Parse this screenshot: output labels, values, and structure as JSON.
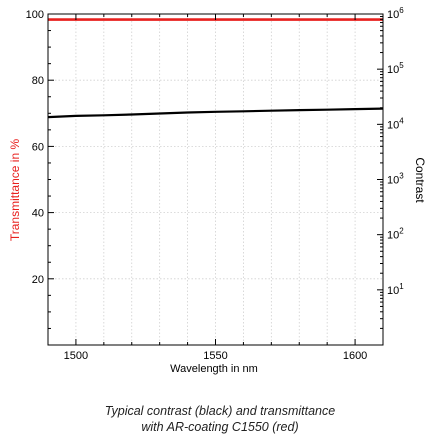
{
  "chart_data": {
    "type": "line",
    "xlabel": "Wavelength in nm",
    "ylabel": "Transmittance in %",
    "y2label": "Contrast",
    "xlim": [
      1490,
      1610
    ],
    "ylim": [
      0,
      100
    ],
    "y2lim": [
      0,
      1000000
    ],
    "y2scale": "log",
    "grid": true,
    "xticks": [
      1500,
      1550,
      1600
    ],
    "yticks": [
      20,
      40,
      60,
      80,
      100
    ],
    "y2ticks": [
      {
        "value": 10,
        "base": "10",
        "exp": "1"
      },
      {
        "value": 100,
        "base": "10",
        "exp": "2"
      },
      {
        "value": 1000,
        "base": "10",
        "exp": "3"
      },
      {
        "value": 10000,
        "base": "10",
        "exp": "4"
      },
      {
        "value": 100000,
        "base": "10",
        "exp": "5"
      },
      {
        "value": 1000000,
        "base": "10",
        "exp": "6"
      }
    ],
    "series": [
      {
        "color": "#e8201e",
        "axis": "left",
        "x": [
          1490,
          1500,
          1520,
          1540,
          1560,
          1580,
          1600,
          1610
        ],
        "values": [
          98.3,
          98.3,
          98.3,
          98.3,
          98.3,
          98.3,
          98.3,
          98.3
        ]
      },
      {
        "color": "#000000",
        "axis": "right",
        "x": [
          1490,
          1500,
          1510,
          1520,
          1530,
          1540,
          1550,
          1560,
          1570,
          1580,
          1590,
          1600,
          1610
        ],
        "values": [
          13500,
          14200,
          14600,
          15100,
          15700,
          16400,
          16900,
          17200,
          17700,
          18100,
          18400,
          18900,
          19300
        ]
      }
    ]
  },
  "caption": {
    "line1": "Typical contrast (black) and transmittance",
    "line2": "with AR-coating C1550 (red)"
  }
}
